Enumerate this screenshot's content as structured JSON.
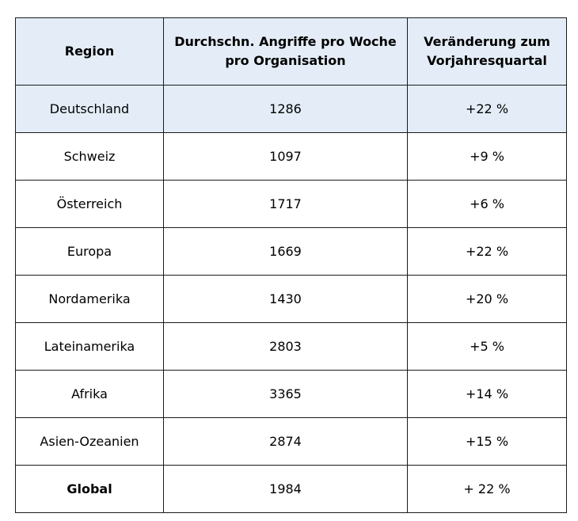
{
  "table": {
    "headers": {
      "region": "Region",
      "attacks": "Durchschn. Angriffe pro Woche pro Organisation",
      "change": "Veränderung zum Vorjahresquartal"
    },
    "rows": [
      {
        "region": "Deutschland",
        "attacks": "1286",
        "change": "+22 %"
      },
      {
        "region": "Schweiz",
        "attacks": "1097",
        "change": "+9 %"
      },
      {
        "region": "Österreich",
        "attacks": "1717",
        "change": "+6 %"
      },
      {
        "region": "Europa",
        "attacks": "1669",
        "change": "+22 %"
      },
      {
        "region": "Nordamerika",
        "attacks": "1430",
        "change": "+20 %"
      },
      {
        "region": "Lateinamerika",
        "attacks": "2803",
        "change": "+5 %"
      },
      {
        "region": "Afrika",
        "attacks": "3365",
        "change": "+14 %"
      },
      {
        "region": "Asien-Ozeanien",
        "attacks": "2874",
        "change": "+15 %"
      },
      {
        "region": "Global",
        "attacks": "1984",
        "change": "+ 22 %"
      }
    ]
  },
  "colors": {
    "header_background": "#e4edf7",
    "highlight_row_background": "#e4edf7",
    "border": "#1a1a1a"
  }
}
